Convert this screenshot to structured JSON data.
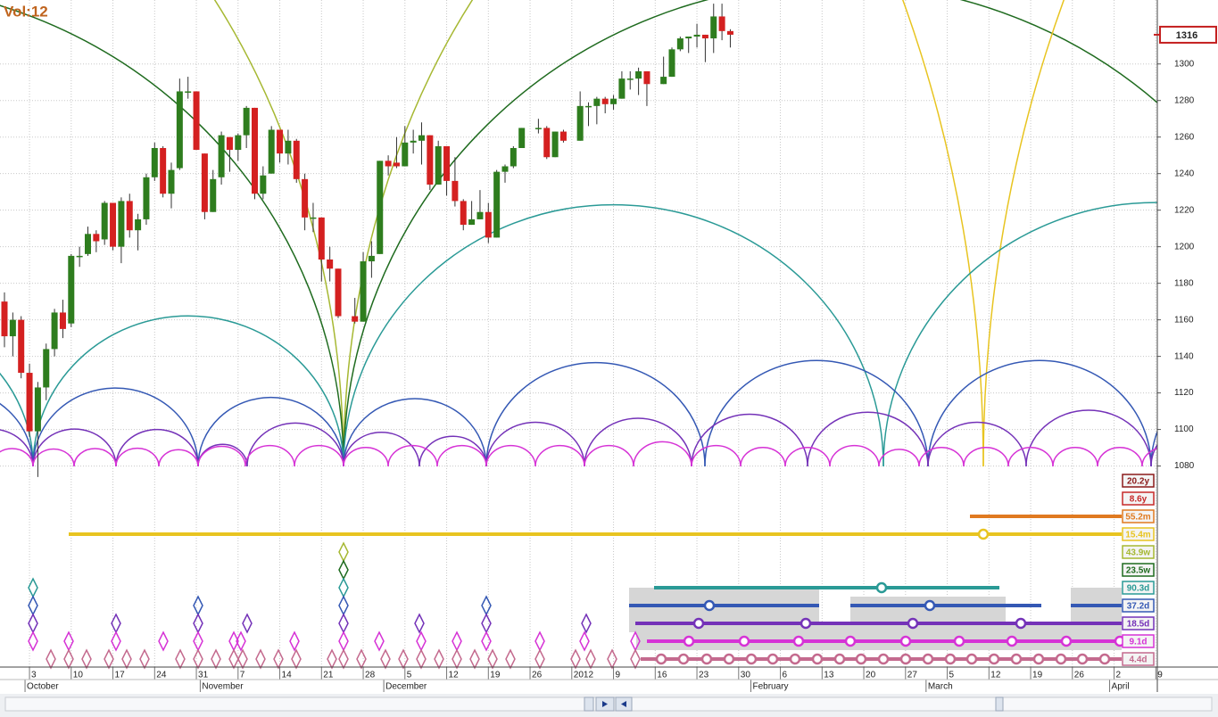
{
  "chart_data": {
    "type": "candlestick",
    "title": "Vol:12",
    "last_price": 1316,
    "up_color": "#2e7d1e",
    "down_color": "#d42020",
    "grid": true,
    "ylim": [
      970,
      1335
    ],
    "yticks": [
      1080,
      1100,
      1120,
      1140,
      1160,
      1180,
      1200,
      1220,
      1240,
      1260,
      1280,
      1300
    ],
    "categories": [
      null,
      null,
      null,
      "3",
      null,
      null,
      null,
      null,
      "10",
      null,
      null,
      null,
      null,
      "17",
      null,
      null,
      null,
      null,
      "24",
      null,
      null,
      null,
      null,
      "31",
      null,
      null,
      null,
      null,
      "7",
      null,
      null,
      null,
      null,
      "14",
      null,
      null,
      null,
      null,
      "21",
      null,
      null,
      null,
      null,
      "28",
      null,
      null,
      null,
      null,
      "5",
      null,
      null,
      null,
      null,
      "12",
      null,
      null,
      null,
      null,
      "19",
      null,
      null,
      null,
      null,
      "26",
      null,
      null,
      null,
      null,
      "2012",
      null,
      null,
      null,
      null,
      "9",
      null,
      null,
      null,
      null,
      "16",
      null,
      null,
      null,
      null,
      "23",
      null,
      null,
      null,
      null,
      "30",
      null,
      null,
      null,
      null,
      "6",
      null,
      null,
      null,
      null,
      "13",
      null,
      null,
      null,
      null,
      "20",
      null,
      null,
      null,
      null,
      "27",
      null,
      null,
      null,
      null,
      "5",
      null,
      null,
      null,
      null,
      "12",
      null,
      null,
      null,
      null,
      "19",
      null,
      null,
      null,
      null,
      "26",
      null,
      null,
      null,
      null,
      "2",
      null,
      null,
      null,
      null,
      "9"
    ],
    "month_labels": [
      null,
      null,
      null,
      "October",
      null,
      null,
      null,
      null,
      null,
      null,
      null,
      null,
      null,
      null,
      null,
      null,
      null,
      null,
      null,
      null,
      null,
      null,
      null,
      null,
      "November",
      null,
      null,
      null,
      null,
      null,
      null,
      null,
      null,
      null,
      null,
      null,
      null,
      null,
      null,
      null,
      null,
      null,
      null,
      null,
      null,
      null,
      "December",
      null,
      null,
      null,
      null,
      null,
      null,
      null,
      null,
      null,
      null,
      null,
      null,
      null,
      null,
      null,
      null,
      null,
      null,
      null,
      null,
      null,
      null,
      null,
      null,
      null,
      null,
      null,
      null,
      null,
      null,
      null,
      null,
      null,
      null,
      null,
      null,
      null,
      null,
      null,
      null,
      null,
      null,
      null,
      "February",
      null,
      null,
      null,
      null,
      null,
      null,
      null,
      null,
      null,
      null,
      null,
      null,
      null,
      null,
      null,
      null,
      null,
      null,
      null,
      null,
      "March",
      null,
      null,
      null,
      null,
      null,
      null,
      null,
      null,
      null,
      null,
      null,
      null,
      null,
      null,
      null,
      null,
      null,
      null,
      null,
      null,
      null,
      "April",
      null,
      null,
      null,
      null,
      null
    ],
    "open": [
      1170,
      1151,
      1160,
      1131,
      1099,
      1123,
      1144,
      1164,
      1158,
      1195,
      1196,
      1207,
      1204,
      1224,
      1200,
      1225,
      1209,
      1215,
      1238,
      1254,
      1229,
      1243,
      1285,
      1285,
      1251,
      1219,
      1238,
      1260,
      1253,
      1261,
      1276,
      1229,
      1240,
      1264,
      1251,
      1258,
      1237,
      1216,
      1216,
      1193,
      1188,
      null,
      1162,
      1159,
      1192,
      1196,
      1247,
      1246,
      1244,
      1257,
      1258,
      1261,
      1234,
      1255,
      1236,
      1225,
      1212,
      1215,
      1219,
      1205,
      1241,
      1244,
      1254,
      null,
      1265,
      1265,
      1249,
      1263,
      null,
      1258,
      1277,
      1277,
      1281,
      1278,
      1281,
      1292,
      1292,
      1296,
      null,
      1289,
      1293,
      1308,
      1314,
      1315,
      1316,
      1314,
      1326,
      1318,
      null,
      null,
      null,
      null,
      null,
      null,
      null,
      null,
      null,
      null,
      null,
      null,
      null,
      null,
      null,
      null,
      null,
      null,
      null,
      null,
      null,
      null,
      null,
      null,
      null,
      null,
      null,
      null,
      null,
      null,
      null,
      null,
      null,
      null,
      null,
      null,
      null,
      null,
      null,
      null,
      null,
      null,
      null,
      null,
      null,
      null,
      null,
      null,
      null,
      null,
      null
    ],
    "high": [
      1175,
      1164,
      1162,
      1136,
      1126,
      1147,
      1166,
      1171,
      1196,
      1200,
      1211,
      1209,
      1225,
      1224,
      1227,
      1229,
      1218,
      1240,
      1257,
      1255,
      1246,
      1292,
      1293,
      1285,
      1251,
      1242,
      1263,
      1260,
      1262,
      1277,
      1276,
      1244,
      1266,
      1264,
      1264,
      1259,
      1240,
      1224,
      1216,
      1200,
      1188,
      null,
      1172,
      1197,
      1203,
      1247,
      1250,
      1260,
      1266,
      1264,
      1268,
      1261,
      1258,
      1255,
      1249,
      1226,
      1225,
      1231,
      1224,
      1242,
      1245,
      1255,
      1265,
      null,
      1270,
      1266,
      1263,
      1264,
      null,
      1285,
      1279,
      1282,
      1282,
      1283,
      1296,
      1296,
      1298,
      1296,
      null,
      1304,
      1309,
      1315,
      1315,
      1322,
      1316,
      1333,
      1333,
      1319,
      null,
      null,
      null,
      null,
      null,
      null,
      null,
      null,
      null,
      null,
      null,
      null,
      null,
      null,
      null,
      null,
      null,
      null,
      null,
      null,
      null,
      null,
      null,
      null,
      null,
      null,
      null,
      null,
      null,
      null,
      null,
      null,
      null,
      null,
      null,
      null,
      null,
      null,
      null,
      null,
      null,
      null,
      null,
      null,
      null,
      null,
      null,
      null,
      null,
      null,
      null
    ],
    "low": [
      1145,
      1140,
      1128,
      1096,
      1074,
      1116,
      1140,
      1150,
      1156,
      1189,
      1195,
      1197,
      1201,
      1198,
      1191,
      1205,
      1198,
      1212,
      1236,
      1227,
      1221,
      1242,
      1281,
      1253,
      1215,
      1219,
      1234,
      1241,
      1247,
      1254,
      1226,
      1226,
      1240,
      1246,
      1245,
      1235,
      1209,
      1208,
      1181,
      1181,
      1161,
      null,
      1158,
      1159,
      1183,
      1196,
      1239,
      1243,
      1244,
      1251,
      1245,
      1231,
      1234,
      1228,
      1222,
      1209,
      1212,
      1215,
      1202,
      1205,
      1235,
      1243,
      1254,
      null,
      1262,
      1248,
      1249,
      1257,
      null,
      1258,
      1266,
      1267,
      1273,
      1275,
      1281,
      1286,
      1283,
      1277,
      null,
      1289,
      1293,
      1307,
      1306,
      1309,
      1301,
      1306,
      1313,
      1309,
      null,
      null,
      null,
      null,
      null,
      null,
      null,
      null,
      null,
      null,
      null,
      null,
      null,
      null,
      null,
      null,
      null,
      null,
      null,
      null,
      null,
      null,
      null,
      null,
      null,
      null,
      null,
      null,
      null,
      null,
      null,
      null,
      null,
      null,
      null,
      null,
      null,
      null,
      null,
      null,
      null,
      null,
      null,
      null,
      null,
      null,
      null,
      null,
      null,
      null,
      null
    ],
    "close": [
      1151,
      1160,
      1131,
      1099,
      1123,
      1144,
      1164,
      1155,
      1195,
      1195,
      1207,
      1203,
      1224,
      1200,
      1225,
      1209,
      1215,
      1238,
      1254,
      1229,
      1242,
      1285,
      1285,
      1253,
      1219,
      1237,
      1261,
      1253,
      1261,
      1276,
      1229,
      1239,
      1264,
      1251,
      1258,
      1237,
      1216,
      1216,
      1193,
      1188,
      1162,
      null,
      1159,
      1192,
      1195,
      1247,
      1244,
      1244,
      1257,
      1258,
      1261,
      1234,
      1255,
      1236,
      1225,
      1212,
      1215,
      1219,
      1205,
      1241,
      1244,
      1254,
      1265,
      null,
      1265,
      1249,
      1263,
      1258,
      null,
      1277,
      1277,
      1281,
      1278,
      1281,
      1292,
      1292,
      1296,
      1289,
      null,
      1293,
      1308,
      1314,
      1315,
      1316,
      1314,
      1326,
      1318,
      1316,
      null,
      null,
      null,
      null,
      null,
      null,
      null,
      null,
      null,
      null,
      null,
      null,
      null,
      null,
      null,
      null,
      null,
      null,
      null,
      null,
      null,
      null,
      null,
      null,
      null,
      null,
      null,
      null,
      null,
      null,
      null,
      null,
      null,
      null,
      null,
      null,
      null,
      null,
      null,
      null,
      null,
      null,
      null,
      null,
      null,
      null,
      null,
      null,
      null,
      null,
      null
    ],
    "cycles": [
      {
        "label": "20.2y",
        "color": "#8b1a1a"
      },
      {
        "label": "8.6y",
        "color": "#c62828"
      },
      {
        "label": "55.2m",
        "color": "#e07a20"
      },
      {
        "label": "15.4m",
        "color": "#e8c420"
      },
      {
        "label": "43.9w",
        "color": "#a6b832"
      },
      {
        "label": "23.5w",
        "color": "#1f6b1f"
      },
      {
        "label": "90.3d",
        "color": "#2a9a96"
      },
      {
        "label": "37.2d",
        "color": "#3458b4"
      },
      {
        "label": "18.5d",
        "color": "#7432b8"
      },
      {
        "label": "9.1d",
        "color": "#d633d6"
      },
      {
        "label": "4.4d",
        "color": "#c46a8e"
      }
    ]
  }
}
